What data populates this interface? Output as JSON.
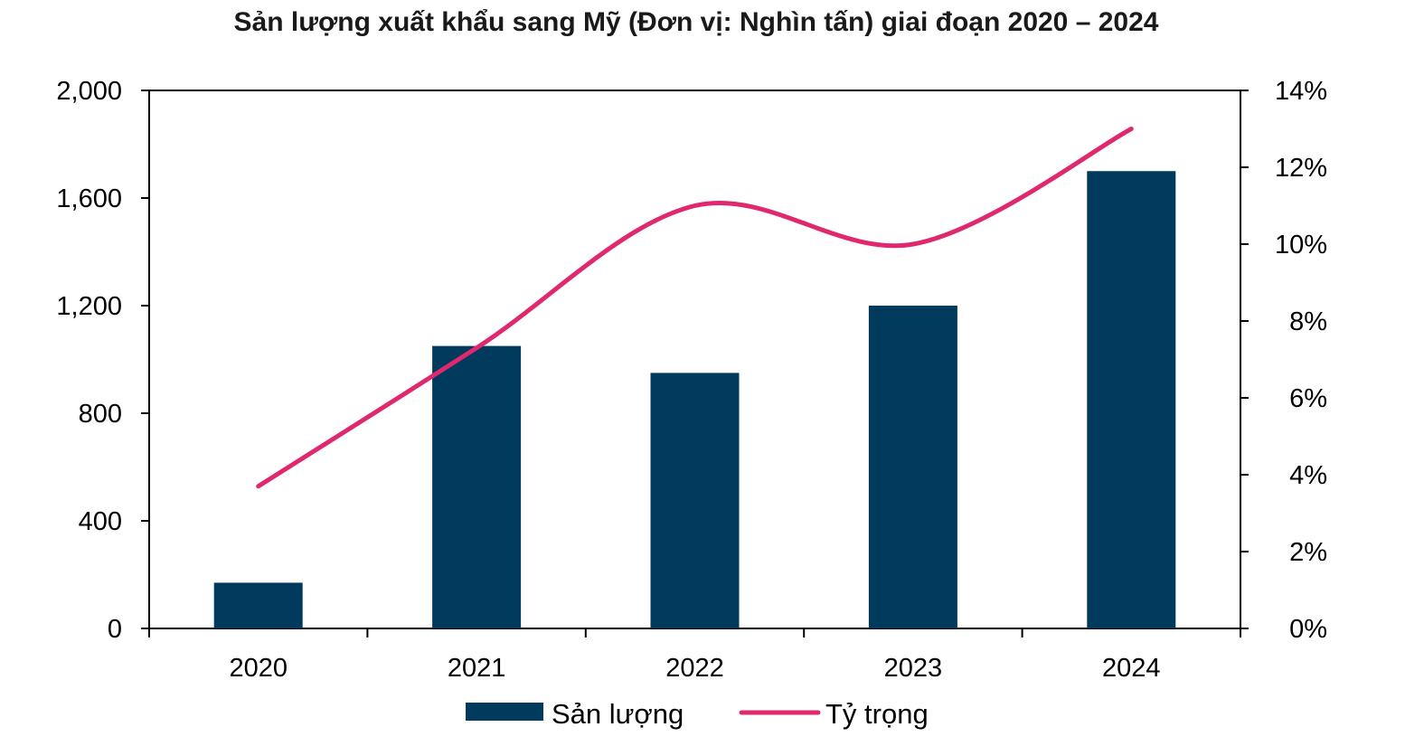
{
  "chart_data": {
    "type": "bar",
    "title": "Sản lượng xuất khẩu sang Mỹ (Đơn vị:  Nghìn tấn) giai đoạn 2020 – 2024",
    "categories": [
      "2020",
      "2021",
      "2022",
      "2023",
      "2024"
    ],
    "series": [
      {
        "name": "Sản lượng",
        "type": "bar",
        "axis": "left",
        "color": "#003a5d",
        "values": [
          170,
          1050,
          950,
          1200,
          1700
        ]
      },
      {
        "name": "Tỷ trọng",
        "type": "line",
        "axis": "right",
        "color": "#e0286e",
        "smooth": true,
        "values": [
          3.7,
          7.3,
          11.0,
          10.0,
          13.0
        ]
      }
    ],
    "y_left": {
      "min": 0,
      "max": 2000,
      "ticks": [
        0,
        400,
        800,
        1200,
        1600,
        2000
      ],
      "tick_labels": [
        "0",
        "400",
        "800",
        "1,200",
        "1,600",
        "2,000"
      ]
    },
    "y_right": {
      "min": 0,
      "max": 14,
      "ticks": [
        0,
        2,
        4,
        6,
        8,
        10,
        12,
        14
      ],
      "tick_labels": [
        "0%",
        "2%",
        "4%",
        "6%",
        "8%",
        "10%",
        "12%",
        "14%"
      ]
    },
    "grid": false,
    "legend_position": "bottom"
  }
}
